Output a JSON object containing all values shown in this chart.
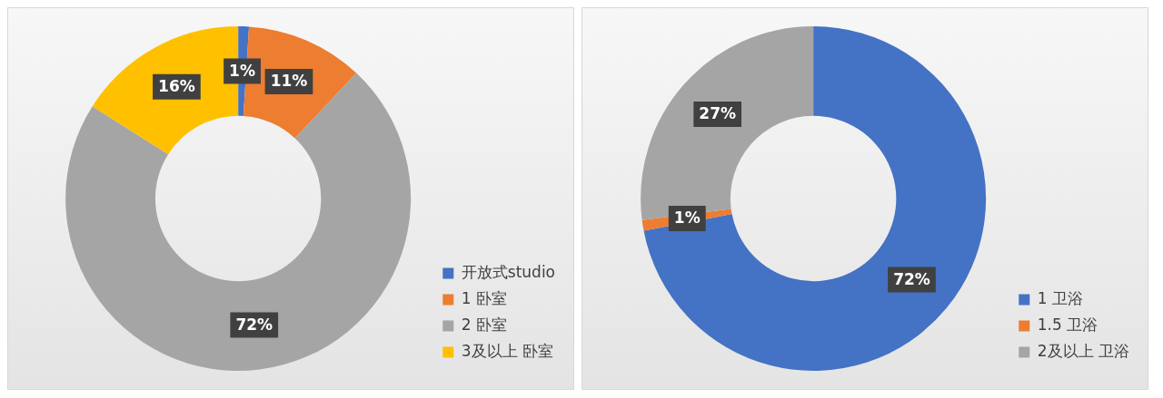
{
  "chart_data": [
    {
      "type": "donut",
      "categories": [
        "开放式studio",
        "1 卧室",
        "2 卧室",
        "3及以上 卧室"
      ],
      "values": [
        1,
        11,
        72,
        16
      ],
      "colors": [
        "#4472c4",
        "#ed7d31",
        "#a5a5a5",
        "#ffc000"
      ],
      "value_labels": [
        "1%",
        "11%",
        "72%",
        "16%"
      ],
      "legend": "bottom right"
    },
    {
      "type": "donut",
      "categories": [
        "1 卫浴",
        "1.5 卫浴",
        "2及以上 卫浴"
      ],
      "values": [
        72,
        1,
        27
      ],
      "colors": [
        "#4472c4",
        "#ed7d31",
        "#a5a5a5"
      ],
      "value_labels": [
        "72%",
        "1%",
        "27%"
      ],
      "legend": "bottom right"
    }
  ]
}
